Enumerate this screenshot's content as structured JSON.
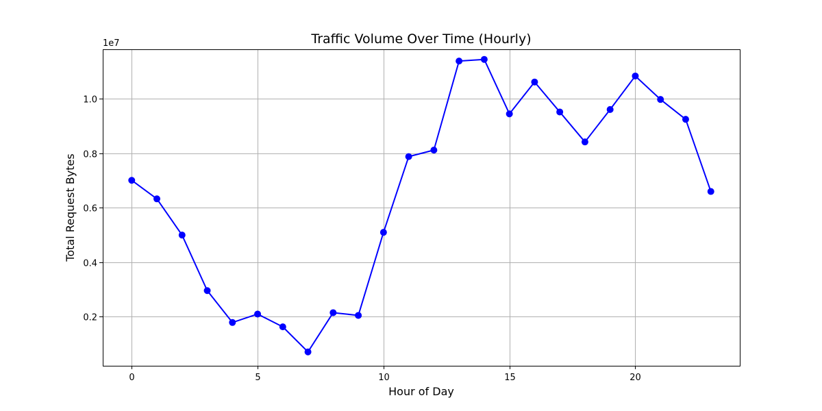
{
  "chart_data": {
    "type": "line",
    "title": "Traffic Volume Over Time (Hourly)",
    "xlabel": "Hour of Day",
    "ylabel": "Total Request Bytes",
    "y_offset_label": "1e7",
    "xlim": [
      -1.15,
      24.15
    ],
    "ylim": [
      0.02,
      1.182
    ],
    "xticks": [
      0,
      5,
      10,
      15,
      20
    ],
    "xtick_labels": [
      "0",
      "5",
      "10",
      "15",
      "20"
    ],
    "yticks": [
      0.2,
      0.4,
      0.6,
      0.8,
      1.0
    ],
    "ytick_labels": [
      "0.2",
      "0.4",
      "0.6",
      "0.8",
      "1.0"
    ],
    "grid": true,
    "series": [
      {
        "color": "#0000ff",
        "marker": "circle",
        "x": [
          0,
          1,
          2,
          3,
          4,
          5,
          6,
          7,
          8,
          9,
          10,
          11,
          12,
          13,
          14,
          15,
          16,
          17,
          18,
          19,
          20,
          21,
          22,
          23
        ],
        "values": [
          0.701,
          0.633,
          0.5,
          0.296,
          0.179,
          0.21,
          0.163,
          0.071,
          0.215,
          0.205,
          0.51,
          0.788,
          0.812,
          1.139,
          1.145,
          0.945,
          1.062,
          0.952,
          0.842,
          0.961,
          1.084,
          0.998,
          0.925,
          0.66
        ]
      }
    ]
  }
}
